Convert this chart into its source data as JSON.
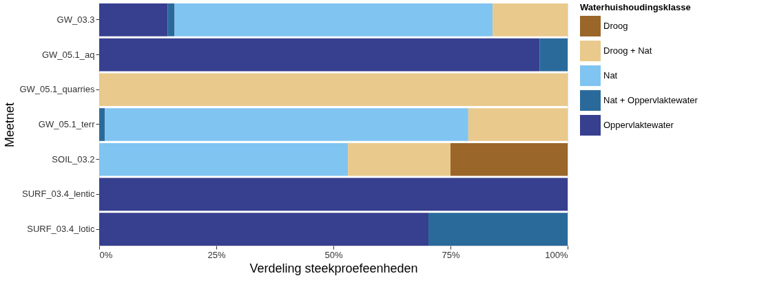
{
  "chart_data": {
    "type": "bar",
    "orientation": "horizontal",
    "stacked": true,
    "categories": [
      "GW_03.3",
      "GW_05.1_aq",
      "GW_05.1_quarries",
      "GW_05.1_terr",
      "SOIL_03.2",
      "SURF_03.4_lentic",
      "SURF_03.4_lotic"
    ],
    "xlabel": "Verdeling steekproefeenheden",
    "ylabel": "Meetnet",
    "legend_title": "Waterhuishoudingsklasse",
    "legend": "right",
    "grid": false,
    "xlim": [
      0,
      100
    ],
    "xticks": [
      {
        "value": 0,
        "label": "0%"
      },
      {
        "value": 25,
        "label": "25%"
      },
      {
        "value": 50,
        "label": "50%"
      },
      {
        "value": 75,
        "label": "75%"
      },
      {
        "value": 100,
        "label": "100%"
      }
    ],
    "series": [
      {
        "name": "Oppervlaktewater",
        "color": "#373f8f",
        "values": [
          14.6,
          94,
          null,
          null,
          null,
          100,
          70.3
        ]
      },
      {
        "name": "Nat + Oppervlaktewater",
        "color": "#2a6a9b",
        "values": [
          1.5,
          6,
          null,
          1.2,
          null,
          null,
          29.7
        ]
      },
      {
        "name": "Nat",
        "color": "#80c4f1",
        "values": [
          67.9,
          null,
          null,
          77.6,
          53.1,
          null,
          null
        ]
      },
      {
        "name": "Droog + Nat",
        "color": "#e9c98c",
        "values": [
          16,
          null,
          100,
          21.2,
          21.9,
          null,
          null
        ]
      },
      {
        "name": "Droog",
        "color": "#9a6629",
        "values": [
          null,
          null,
          null,
          null,
          25,
          null,
          null
        ]
      }
    ]
  }
}
